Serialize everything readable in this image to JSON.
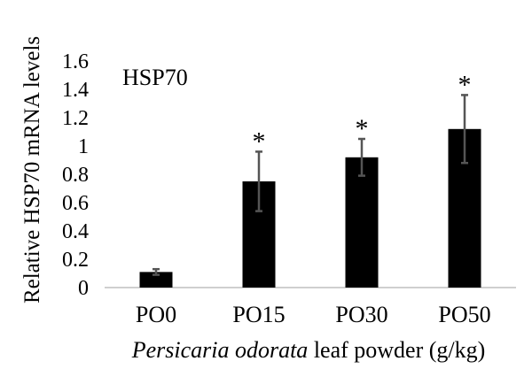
{
  "chart_data": {
    "type": "bar",
    "title": "HSP70",
    "ylabel": "Relative HSP70 mRNA levels",
    "xlabel_italic": "Persicaria odorata",
    "xlabel_rest": " leaf powder (g/kg)",
    "categories": [
      "PO0",
      "PO15",
      "PO30",
      "PO50"
    ],
    "values": [
      0.11,
      0.75,
      0.92,
      1.12
    ],
    "errors": [
      0.02,
      0.21,
      0.13,
      0.24
    ],
    "significance": [
      "",
      "*",
      "*",
      "*"
    ],
    "ylim": [
      0,
      1.6
    ],
    "yticks": [
      "0",
      "0.2",
      "0.4",
      "0.6",
      "0.8",
      "1",
      "1.2",
      "1.4",
      "1.6"
    ],
    "grid": false,
    "bar_color": "#000000",
    "error_bar_color": "#555555"
  }
}
